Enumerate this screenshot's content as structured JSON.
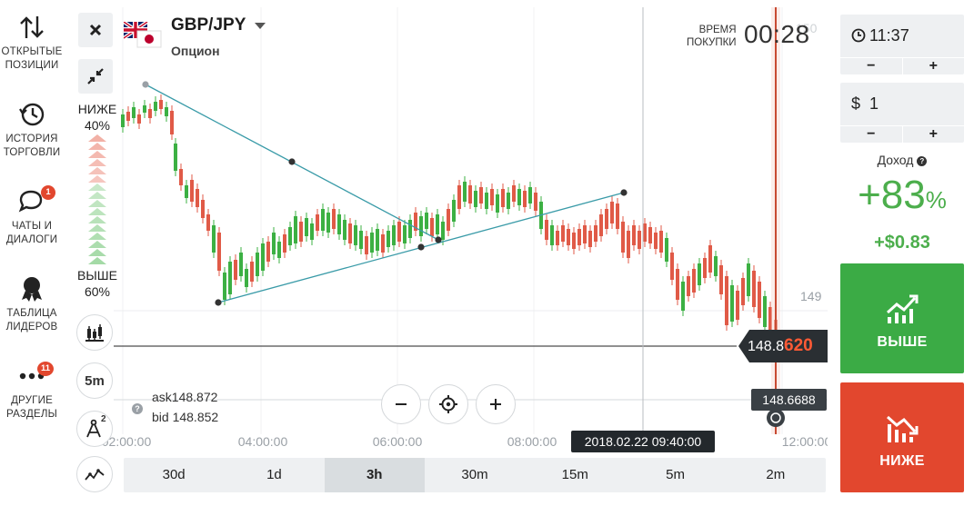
{
  "sidebar": {
    "items": [
      {
        "label": "ОТКРЫТЫЕ\nПОЗИЦИИ",
        "icon": "up-down-arrows-icon"
      },
      {
        "label": "ИСТОРИЯ\nТОРГОВЛИ",
        "icon": "history-icon"
      },
      {
        "label": "ЧАТЫ И\nДИАЛОГИ",
        "icon": "chat-icon",
        "badge": "1"
      },
      {
        "label": "ТАБЛИЦА\nЛИДЕРОВ",
        "icon": "medal-icon"
      },
      {
        "label": "ДРУГИЕ\nРАЗДЕЛЫ",
        "icon": "more-dots-icon",
        "badge": "11"
      }
    ]
  },
  "header": {
    "pair": "GBP/JPY",
    "type": "Опцион",
    "buy_time_label": "ВРЕМЯ\nПОКУПКИ",
    "buy_timer": "00:28"
  },
  "indicator": {
    "lower_label": "НИЖЕ",
    "lower_pct": "40%",
    "higher_label": "ВЫШЕ",
    "higher_pct": "60%"
  },
  "quote": {
    "ask_label": "ask",
    "ask": "148.872",
    "bid_label": "bid",
    "bid": "148.852"
  },
  "chart_tools": {
    "period": "5m",
    "drawing_badge": "2"
  },
  "price_axis": {
    "label_149": "149",
    "label_150": "150",
    "current_price_prefix": "148.8",
    "current_price_suffix": "620",
    "expiry_price": "148.6688"
  },
  "time_axis": {
    "ticks": [
      "02:00:00",
      "04:00:00",
      "06:00:00",
      "08:00:00",
      "12:00:00"
    ],
    "cursor_time": "2018.02.22 09:40:00"
  },
  "timeframes": [
    {
      "label": "30d",
      "active": false
    },
    {
      "label": "1d",
      "active": false
    },
    {
      "label": "3h",
      "active": true
    },
    {
      "label": "30m",
      "active": false
    },
    {
      "label": "15m",
      "active": false
    },
    {
      "label": "5m",
      "active": false
    },
    {
      "label": "2m",
      "active": false
    }
  ],
  "panel": {
    "expiry_time": "11:37",
    "amount_currency": "$",
    "amount": "1",
    "minus": "−",
    "plus": "+",
    "income_label": "Доход",
    "income_pct": "+83",
    "income_pct_sign": "%",
    "income_abs": "+$0.83",
    "higher_button": "ВЫШЕ",
    "lower_button": "НИЖЕ"
  },
  "colors": {
    "up": "#3cb043",
    "down": "#e05a47",
    "trend_line": "#3a9ba8",
    "higher_button": "#3bab45",
    "lower_button": "#e2472e"
  }
}
